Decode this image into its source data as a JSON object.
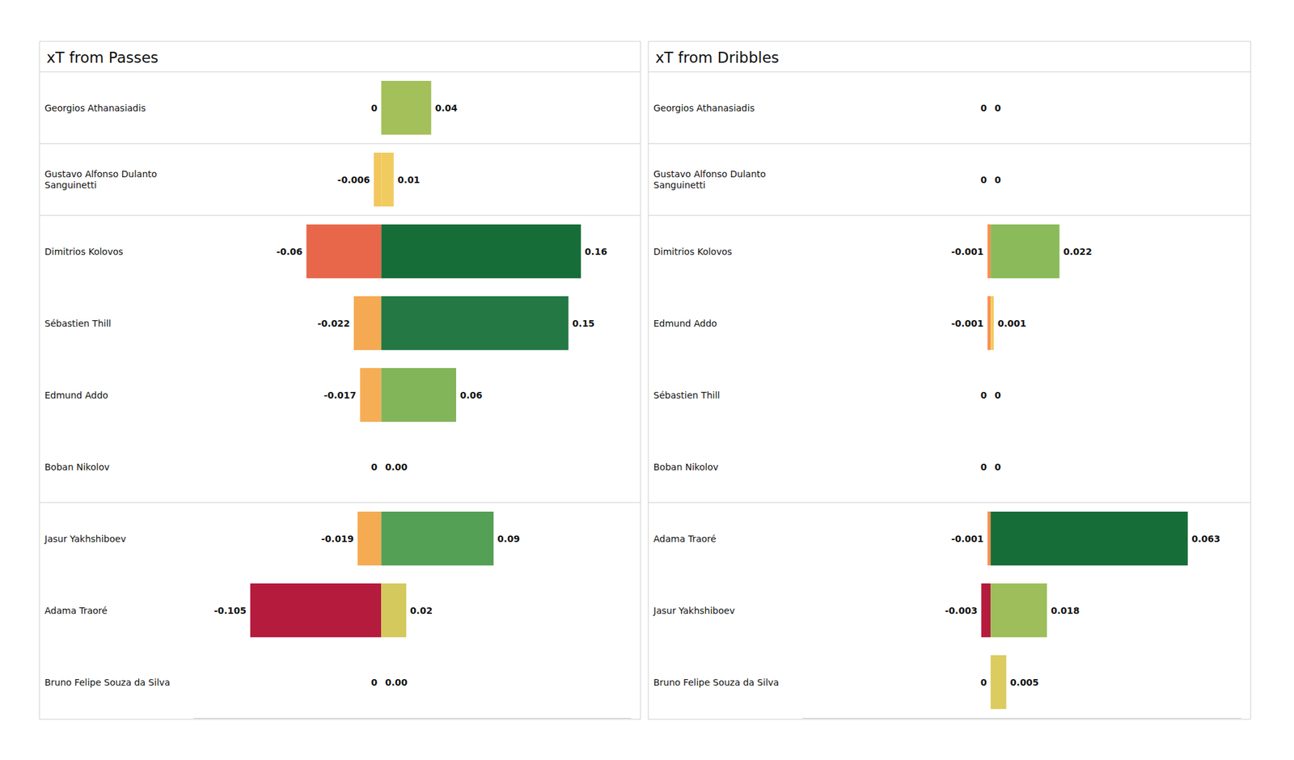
{
  "chart_data": [
    {
      "type": "bar",
      "title": "xT from Passes",
      "orientation": "horizontal",
      "data_labels": true,
      "tick_labels": "y",
      "categories": [
        "Georgios Athanasiadis",
        "Gustavo Alfonso Dulanto Sanguinetti",
        "Dimitrios Kolovos",
        "Sébastien Thill",
        "Edmund Addo",
        "Boban Nikolov",
        "Jasur Yakhshiboev",
        "Adama Traoré",
        "Bruno Felipe Souza da Silva"
      ],
      "xlim": [
        -0.15,
        0.2
      ],
      "series": [
        {
          "values": [
            0,
            -0.006,
            -0.06,
            -0.022,
            -0.017,
            0,
            -0.019,
            -0.105,
            0
          ],
          "value_labels": [
            "0",
            "-0.006",
            "-0.06",
            "-0.022",
            "-0.017",
            "0",
            "-0.019",
            "-0.105",
            "0"
          ],
          "colors": [
            "#f2d46a",
            "#f2c75e",
            "#e8674a",
            "#f5a952",
            "#f5ae55",
            "#f2d46a",
            "#f5ab52",
            "#b51b3c",
            "#f2d46a"
          ]
        },
        {
          "values": [
            0.04,
            0.01,
            0.16,
            0.15,
            0.06,
            0,
            0.09,
            0.02,
            0
          ],
          "value_labels": [
            "0.04",
            "0.01",
            "0.16",
            "0.15",
            "0.06",
            "0.00",
            "0.09",
            "0.02",
            "0.00"
          ],
          "colors": [
            "#a3c05a",
            "#f0cc60",
            "#166d38",
            "#237843",
            "#82b55a",
            "#e8d66a",
            "#54a055",
            "#d3c95c",
            "#e8d66a"
          ]
        }
      ]
    },
    {
      "type": "bar",
      "title": "xT from Dribbles",
      "orientation": "horizontal",
      "data_labels": true,
      "tick_labels": "y",
      "categories": [
        "Georgios Athanasiadis",
        "Gustavo Alfonso Dulanto Sanguinetti",
        "Dimitrios Kolovos",
        "Edmund Addo",
        "Sébastien Thill",
        "Boban Nikolov",
        "Adama Traoré",
        "Jasur Yakhshiboev",
        "Bruno Felipe Souza da Silva"
      ],
      "xlim": [
        -0.06,
        0.08
      ],
      "series": [
        {
          "values": [
            0,
            0,
            -0.001,
            -0.001,
            0,
            0,
            -0.001,
            -0.003,
            0
          ],
          "value_labels": [
            "0",
            "0",
            "-0.001",
            "-0.001",
            "0",
            "0",
            "-0.001",
            "-0.003",
            "0"
          ],
          "colors": [
            "#f2d46a",
            "#f2d46a",
            "#f98e4e",
            "#f98e4e",
            "#f2d46a",
            "#f2d46a",
            "#f98e4e",
            "#b51b3c",
            "#f2d46a"
          ]
        },
        {
          "values": [
            0,
            0,
            0.022,
            0.001,
            0,
            0,
            0.063,
            0.018,
            0.005
          ],
          "value_labels": [
            "0",
            "0",
            "0.022",
            "0.001",
            "0",
            "0",
            "0.063",
            "0.018",
            "0.005"
          ],
          "colors": [
            "#e8d66a",
            "#e8d66a",
            "#8aba59",
            "#f2cc62",
            "#e8d66a",
            "#e8d66a",
            "#166d38",
            "#9dbe5b",
            "#dccb5e"
          ]
        }
      ]
    }
  ]
}
